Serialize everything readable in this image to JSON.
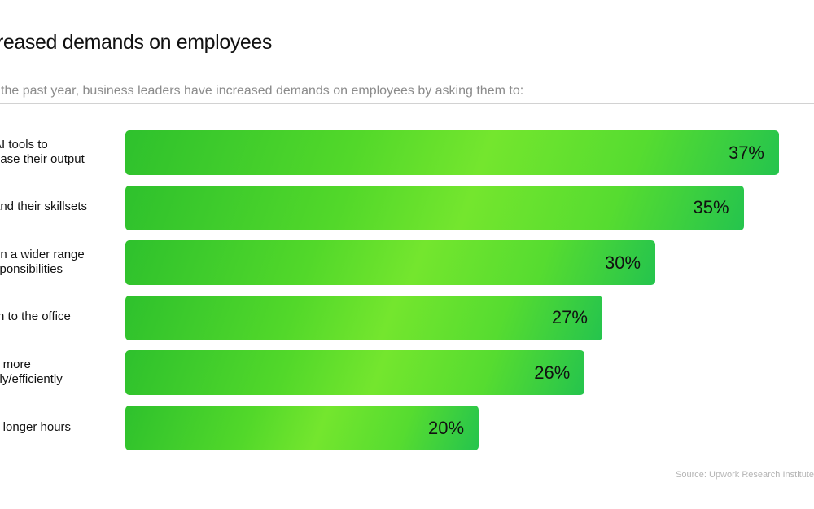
{
  "title": "reased demands on employees",
  "subtitle": "the past year, business leaders have increased demands on employees by asking them to:",
  "source": "Source: Upwork Research Institute",
  "colors": {
    "bar_start": "#2ec12d",
    "bar_mid": "#74e62e",
    "bar_end": "#25c44d",
    "text": "#111111",
    "muted": "#8b8b8b"
  },
  "chart_data": {
    "type": "bar",
    "orientation": "horizontal",
    "categories": [
      [
        "AI tools to",
        "ease their output"
      ],
      [
        "and their skillsets"
      ],
      [
        "on a wider range",
        "sponsibilities"
      ],
      [
        "rn to the office"
      ],
      [
        "k more",
        "kly/efficiently"
      ],
      [
        "k longer hours"
      ]
    ],
    "values": [
      37,
      35,
      30,
      27,
      26,
      20
    ],
    "value_labels": [
      "37%",
      "35%",
      "30%",
      "27%",
      "26%",
      "20%"
    ],
    "unit": "%",
    "xlim": [
      0,
      37
    ],
    "grid": false,
    "legend": "none"
  }
}
